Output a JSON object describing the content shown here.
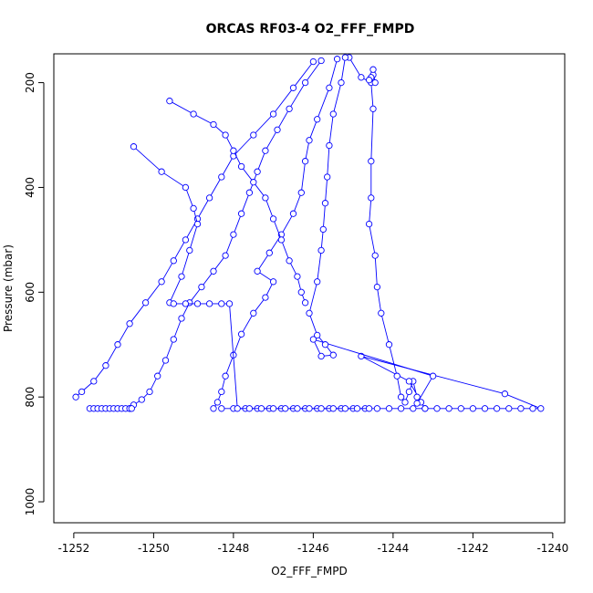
{
  "chart_data": {
    "type": "line",
    "title": "ORCAS RF03-4 O2_FFF_FMPD",
    "xlabel": "O2_FFF_FMPD",
    "ylabel": "Pressure (mbar)",
    "xlim": [
      -1252.5,
      -1239.7
    ],
    "ylim": [
      1040,
      145
    ],
    "y_reversed": true,
    "x_ticks": [
      -1252,
      -1250,
      -1248,
      -1246,
      -1244,
      -1242,
      -1240
    ],
    "x_tick_labels": [
      "-1252",
      "-1250",
      "-1248",
      "-1246",
      "-1244",
      "-1242",
      "-1240"
    ],
    "y_ticks": [
      200,
      400,
      600,
      800,
      1000
    ],
    "y_tick_labels": [
      "200",
      "400",
      "600",
      "800",
      "1000"
    ],
    "grid": false,
    "series": [
      {
        "color": "#0000ff",
        "marker": "open-circle",
        "x": [
          -1245.1,
          -1244.8,
          -1244.55,
          -1244.5,
          -1244.55,
          -1244.55,
          -1244.6,
          -1244.45,
          -1244.4,
          -1244.3,
          -1244.1,
          -1243.9,
          -1243.8,
          -1243.7,
          -1243.6,
          -1243.5,
          -1243.4,
          -1243.3,
          -1243.2,
          -1243.6,
          -1244.8,
          -1241.2,
          -1240.3,
          -1240.5,
          -1240.8,
          -1241.1,
          -1241.4,
          -1241.7,
          -1242.0,
          -1242.3,
          -1242.6,
          -1242.9,
          -1243.2,
          -1243.5,
          -1243.8,
          -1244.1,
          -1244.4,
          -1244.7,
          -1245.0,
          -1245.3,
          -1245.6,
          -1245.9,
          -1246.2,
          -1246.5,
          -1246.8,
          -1247.1,
          -1247.4,
          -1247.7,
          -1248.0,
          -1248.3
        ],
        "y": [
          152,
          190,
          200,
          250,
          350,
          420,
          470,
          530,
          590,
          640,
          700,
          760,
          800,
          810,
          790,
          770,
          800,
          810,
          822,
          770,
          722,
          794,
          822,
          822,
          822,
          822,
          822,
          822,
          822,
          822,
          822,
          822,
          822,
          822,
          822,
          822,
          822,
          822,
          822,
          822,
          822,
          822,
          822,
          822,
          822,
          822,
          822,
          822,
          822,
          822
        ]
      },
      {
        "color": "#0000ff",
        "marker": "open-circle",
        "x": [
          -1245.2,
          -1245.3,
          -1245.5,
          -1245.6,
          -1245.65,
          -1245.7,
          -1245.75,
          -1245.8,
          -1245.9,
          -1246.1,
          -1245.9,
          -1245.7,
          -1245.5,
          -1245.8,
          -1246.0,
          -1243.0,
          -1243.4
        ],
        "y": [
          152,
          200,
          260,
          320,
          380,
          430,
          480,
          520,
          580,
          640,
          682,
          700,
          720,
          722,
          690,
          760,
          812
        ]
      },
      {
        "color": "#0000ff",
        "marker": "open-circle",
        "x": [
          -1245.4,
          -1245.6,
          -1245.9,
          -1246.1,
          -1246.2,
          -1246.3,
          -1246.5,
          -1246.8,
          -1247.1,
          -1247.4,
          -1247.0,
          -1247.2,
          -1247.5,
          -1247.8,
          -1248.0,
          -1248.2,
          -1248.3,
          -1248.4,
          -1248.5
        ],
        "y": [
          155,
          210,
          270,
          310,
          350,
          410,
          450,
          490,
          525,
          560,
          580,
          610,
          640,
          680,
          720,
          760,
          790,
          810,
          822
        ]
      },
      {
        "color": "#0000ff",
        "marker": "open-circle",
        "x": [
          -1245.8,
          -1246.2,
          -1246.6,
          -1246.9,
          -1247.2,
          -1247.4,
          -1247.6,
          -1247.8,
          -1248.0,
          -1248.2,
          -1248.5,
          -1248.8,
          -1249.1,
          -1249.3,
          -1249.5,
          -1249.7,
          -1249.9,
          -1250.1,
          -1250.3,
          -1250.5,
          -1250.6
        ],
        "y": [
          158,
          200,
          250,
          290,
          330,
          370,
          410,
          450,
          490,
          530,
          560,
          590,
          620,
          650,
          690,
          730,
          760,
          790,
          805,
          815,
          822
        ]
      },
      {
        "color": "#0000ff",
        "marker": "open-circle",
        "x": [
          -1246.0,
          -1246.5,
          -1247.0,
          -1247.5,
          -1248.0,
          -1248.3,
          -1248.6,
          -1248.9,
          -1249.2,
          -1249.5,
          -1249.8,
          -1250.2,
          -1250.6,
          -1250.9,
          -1251.2,
          -1251.5,
          -1251.8,
          -1251.95
        ],
        "y": [
          160,
          210,
          260,
          300,
          340,
          380,
          420,
          460,
          500,
          540,
          580,
          620,
          660,
          700,
          740,
          770,
          790,
          800
        ]
      },
      {
        "color": "#0000ff",
        "marker": "open-circle",
        "x": [
          -1250.5,
          -1249.8,
          -1249.2,
          -1249.0,
          -1248.9,
          -1249.1,
          -1249.3,
          -1249.6,
          -1249.5,
          -1249.2,
          -1248.9,
          -1248.6,
          -1248.3,
          -1248.1,
          -1247.9,
          -1247.6,
          -1247.3,
          -1247.0,
          -1246.7,
          -1246.4,
          -1246.1,
          -1245.8,
          -1245.5,
          -1245.2,
          -1244.9,
          -1244.6
        ],
        "y": [
          322,
          370,
          400,
          440,
          470,
          520,
          570,
          620,
          622,
          622,
          622,
          622,
          622,
          622,
          822,
          822,
          822,
          822,
          822,
          822,
          822,
          822,
          822,
          822,
          822,
          822
        ]
      },
      {
        "color": "#0000ff",
        "marker": "open-circle",
        "x": [
          -1249.6,
          -1249.0,
          -1248.5,
          -1248.2,
          -1248.0,
          -1247.8,
          -1247.5,
          -1247.2,
          -1247.0,
          -1246.8,
          -1246.6,
          -1246.4,
          -1246.3,
          -1246.2
        ],
        "y": [
          235,
          260,
          280,
          300,
          330,
          360,
          390,
          420,
          460,
          500,
          540,
          570,
          600,
          620
        ]
      },
      {
        "color": "#0000ff",
        "marker": "open-circle",
        "x": [
          -1251.6,
          -1251.5,
          -1251.4,
          -1251.3,
          -1251.2,
          -1251.1,
          -1251.0,
          -1250.9,
          -1250.8,
          -1250.7,
          -1250.6,
          -1250.55
        ],
        "y": [
          822,
          822,
          822,
          822,
          822,
          822,
          822,
          822,
          822,
          822,
          822,
          822
        ]
      },
      {
        "color": "#0000ff",
        "marker": "open-circle",
        "x": [
          -1244.5,
          -1244.55,
          -1244.6,
          -1244.45,
          -1244.5
        ],
        "y": [
          185,
          190,
          195,
          200,
          175
        ]
      }
    ]
  }
}
